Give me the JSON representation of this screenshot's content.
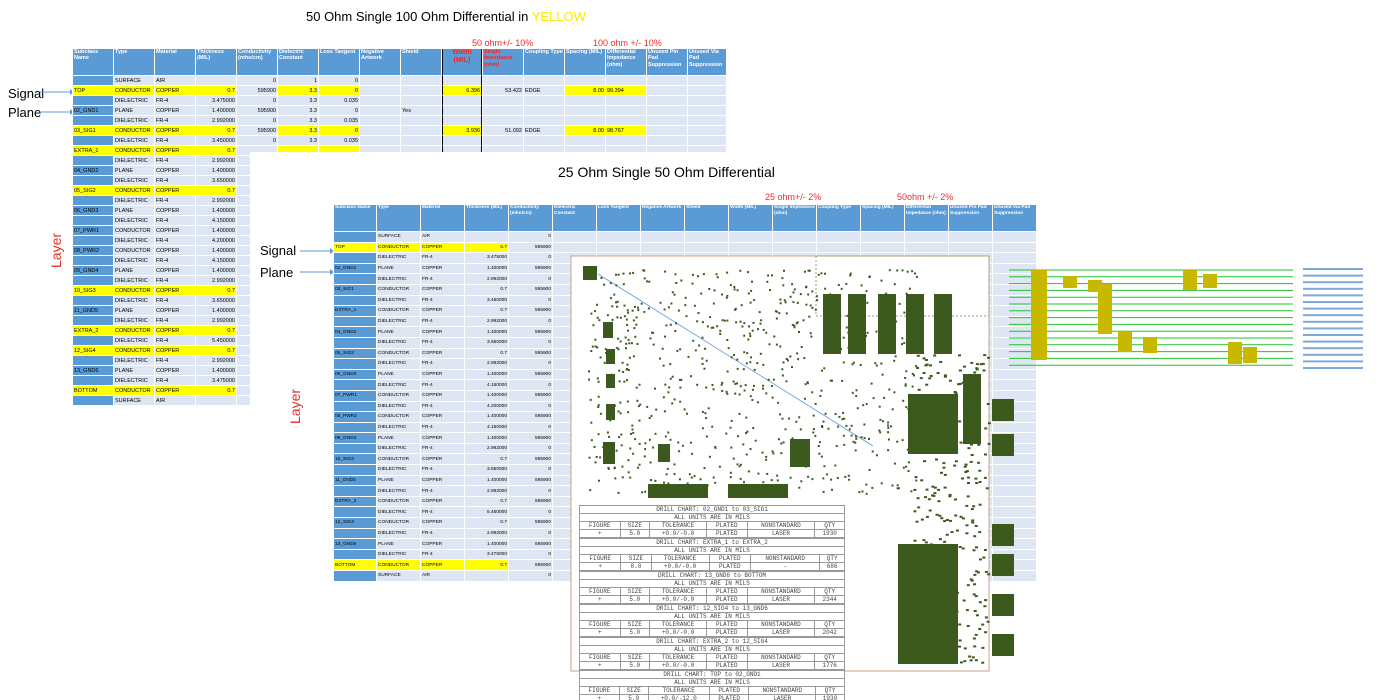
{
  "top_title": {
    "prefix": "50 Ohm Single 100 Ohm Differential in ",
    "highlight": "YELLOW"
  },
  "top_notes": {
    "single": "50 ohm+/- 10%",
    "diff": "100 ohm +/- 10%"
  },
  "second_title": "25 Ohm Single 50 Ohm Differential",
  "second_notes": {
    "single": "25 ohm+/- 2%",
    "diff": "50ohm +/- 2%"
  },
  "labels": {
    "signal": "Signal",
    "plane": "Plane",
    "layer": "Layer"
  },
  "table1": {
    "headers": [
      "Subclass Name",
      "Type",
      "Material",
      "Thickness (MIL)",
      "Conductivity (mho/cm)",
      "Dielectric Constant",
      "Loss Tangent",
      "Negative Artwork",
      "Shield",
      "Width (MIL)",
      "Single Impedance (ohm)",
      "Coupling Type",
      "Spacing (MIL)",
      "Differential Impedance (ohm)",
      "Unused Pin Pad Suppression",
      "Unused Via Pad Suppression"
    ],
    "rows": [
      {
        "n": "",
        "t": "SURFACE",
        "m": "AIR",
        "th": "",
        "c": "0",
        "d": "1",
        "l": "0",
        "sh": "",
        "w": "",
        "si": "",
        "ct": "",
        "sp": "",
        "di": ""
      },
      {
        "n": "TOP",
        "t": "CONDUCTOR",
        "m": "COPPER",
        "th": "0.7",
        "c": "595900",
        "d": "3.3",
        "l": "0",
        "sh": "",
        "w": "6.396",
        "si": "53.422",
        "ct": "EDGE",
        "sp": "8.00",
        "di": "99.394",
        "y": true
      },
      {
        "n": "",
        "t": "DIELECTRIC",
        "m": "FR-4",
        "th": "3.475000",
        "c": "0",
        "d": "3.3",
        "l": "0.035",
        "sh": "",
        "w": "",
        "si": "",
        "ct": "",
        "sp": "",
        "di": ""
      },
      {
        "n": "02_GND1",
        "t": "PLANE",
        "m": "COPPER",
        "th": "1.400000",
        "c": "595900",
        "d": "3.3",
        "l": "0",
        "sh": "Yes",
        "w": "",
        "si": "",
        "ct": "",
        "sp": "",
        "di": ""
      },
      {
        "n": "",
        "t": "DIELECTRIC",
        "m": "FR-4",
        "th": "2.992000",
        "c": "0",
        "d": "3.3",
        "l": "0.035",
        "sh": "",
        "w": "",
        "si": "",
        "ct": "",
        "sp": "",
        "di": ""
      },
      {
        "n": "03_SIG1",
        "t": "CONDUCTOR",
        "m": "COPPER",
        "th": "0.7",
        "c": "595900",
        "d": "3.3",
        "l": "0",
        "sh": "",
        "w": "3.936",
        "si": "51.092",
        "ct": "EDGE",
        "sp": "8.00",
        "di": "98.767",
        "y": true
      },
      {
        "n": "",
        "t": "DIELECTRIC",
        "m": "FR-4",
        "th": "3.450000",
        "c": "0",
        "d": "3.3",
        "l": "0.035",
        "sh": "",
        "w": "",
        "si": "",
        "ct": "",
        "sp": "",
        "di": ""
      },
      {
        "n": "EXTRA_1",
        "t": "CONDUCTOR",
        "m": "COPPER",
        "th": "0.7",
        "y": true
      },
      {
        "n": "",
        "t": "DIELECTRIC",
        "m": "FR-4",
        "th": "2.992000"
      },
      {
        "n": "04_GND2",
        "t": "PLANE",
        "m": "COPPER",
        "th": "1.400000"
      },
      {
        "n": "",
        "t": "DIELECTRIC",
        "m": "FR-4",
        "th": "3.650000"
      },
      {
        "n": "05_SIG2",
        "t": "CONDUCTOR",
        "m": "COPPER",
        "th": "0.7",
        "y": true
      },
      {
        "n": "",
        "t": "DIELECTRIC",
        "m": "FR-4",
        "th": "2.992000"
      },
      {
        "n": "06_GND3",
        "t": "PLANE",
        "m": "COPPER",
        "th": "1.400000"
      },
      {
        "n": "",
        "t": "DIELECTRIC",
        "m": "FR-4",
        "th": "4.150000"
      },
      {
        "n": "07_PWR1",
        "t": "CONDUCTOR",
        "m": "COPPER",
        "th": "1.400000"
      },
      {
        "n": "",
        "t": "DIELECTRIC",
        "m": "FR-4",
        "th": "4.200000"
      },
      {
        "n": "08_PWR2",
        "t": "CONDUCTOR",
        "m": "COPPER",
        "th": "1.400000"
      },
      {
        "n": "",
        "t": "DIELECTRIC",
        "m": "FR-4",
        "th": "4.150000"
      },
      {
        "n": "09_GND4",
        "t": "PLANE",
        "m": "COPPER",
        "th": "1.400000"
      },
      {
        "n": "",
        "t": "DIELECTRIC",
        "m": "FR-4",
        "th": "2.992000"
      },
      {
        "n": "10_SIG3",
        "t": "CONDUCTOR",
        "m": "COPPER",
        "th": "0.7",
        "y": true
      },
      {
        "n": "",
        "t": "DIELECTRIC",
        "m": "FR-4",
        "th": "3.650000"
      },
      {
        "n": "11_GND5",
        "t": "PLANE",
        "m": "COPPER",
        "th": "1.400000"
      },
      {
        "n": "",
        "t": "DIELECTRIC",
        "m": "FR-4",
        "th": "2.992000"
      },
      {
        "n": "EXTRA_2",
        "t": "CONDUCTOR",
        "m": "COPPER",
        "th": "0.7",
        "y": true
      },
      {
        "n": "",
        "t": "DIELECTRIC",
        "m": "FR-4",
        "th": "5.450000"
      },
      {
        "n": "12_SIG4",
        "t": "CONDUCTOR",
        "m": "COPPER",
        "th": "0.7",
        "y": true
      },
      {
        "n": "",
        "t": "DIELECTRIC",
        "m": "FR-4",
        "th": "2.992000"
      },
      {
        "n": "13_GND6",
        "t": "PLANE",
        "m": "COPPER",
        "th": "1.400000"
      },
      {
        "n": "",
        "t": "DIELECTRIC",
        "m": "FR-4",
        "th": "3.475000"
      },
      {
        "n": "BOTTOM",
        "t": "CONDUCTOR",
        "m": "COPPER",
        "th": "0.7",
        "y": true
      },
      {
        "n": "",
        "t": "SURFACE",
        "m": "AIR",
        "th": ""
      }
    ]
  },
  "table2": {
    "headers": [
      "Subclass Name",
      "Type",
      "Material",
      "Thickness (MIL)",
      "Conductivity (mho/cm)",
      "Dielectric Constant",
      "Loss Tangent",
      "Negative Artwork",
      "Shield",
      "Width (MIL)",
      "Single Impedance (ohm)",
      "Coupling Type",
      "Spacing (MIL)",
      "Differential Impedance (ohm)",
      "Unused Pin Pad Suppression",
      "Unused Via Pad Suppression"
    ],
    "rows": [
      {
        "n": "",
        "t": "SURFACE",
        "m": "AIR",
        "th": "",
        "c": "0"
      },
      {
        "n": "TOP",
        "t": "CONDUCTOR",
        "m": "COPPER",
        "th": "0.7",
        "c": "595900",
        "y": true
      },
      {
        "n": "",
        "t": "DIELECTRIC",
        "m": "FR-4",
        "th": "3.475000",
        "c": "0"
      },
      {
        "n": "02_GND1",
        "t": "PLANE",
        "m": "COPPER",
        "th": "1.400000",
        "c": "595900"
      },
      {
        "n": "",
        "t": "DIELECTRIC",
        "m": "FR-4",
        "th": "2.992000",
        "c": "0"
      },
      {
        "n": "03_SIG1",
        "t": "CONDUCTOR",
        "m": "COPPER",
        "th": "0.7",
        "c": "595900"
      },
      {
        "n": "",
        "t": "DIELECTRIC",
        "m": "FR-4",
        "th": "3.450000",
        "c": "0"
      },
      {
        "n": "EXTRA_1",
        "t": "CONDUCTOR",
        "m": "COPPER",
        "th": "0.7",
        "c": "595900"
      },
      {
        "n": "",
        "t": "DIELECTRIC",
        "m": "FR-4",
        "th": "2.992000",
        "c": "0"
      },
      {
        "n": "04_GND2",
        "t": "PLANE",
        "m": "COPPER",
        "th": "1.400000",
        "c": "595900"
      },
      {
        "n": "",
        "t": "DIELECTRIC",
        "m": "FR-4",
        "th": "3.650000",
        "c": "0"
      },
      {
        "n": "05_SIG2",
        "t": "CONDUCTOR",
        "m": "COPPER",
        "th": "0.7",
        "c": "595900"
      },
      {
        "n": "",
        "t": "DIELECTRIC",
        "m": "FR-4",
        "th": "2.992000",
        "c": "0"
      },
      {
        "n": "06_GND3",
        "t": "PLANE",
        "m": "COPPER",
        "th": "1.400000",
        "c": "595900"
      },
      {
        "n": "",
        "t": "DIELECTRIC",
        "m": "FR-4",
        "th": "4.150000",
        "c": "0"
      },
      {
        "n": "07_PWR1",
        "t": "CONDUCTOR",
        "m": "COPPER",
        "th": "1.400000",
        "c": "595900"
      },
      {
        "n": "",
        "t": "DIELECTRIC",
        "m": "FR-4",
        "th": "4.200000",
        "c": "0"
      },
      {
        "n": "08_PWR2",
        "t": "CONDUCTOR",
        "m": "COPPER",
        "th": "1.400000",
        "c": "595900"
      },
      {
        "n": "",
        "t": "DIELECTRIC",
        "m": "FR-4",
        "th": "4.150000",
        "c": "0"
      },
      {
        "n": "09_GND4",
        "t": "PLANE",
        "m": "COPPER",
        "th": "1.400000",
        "c": "595900"
      },
      {
        "n": "",
        "t": "DIELECTRIC",
        "m": "FR-4",
        "th": "2.992000",
        "c": "0"
      },
      {
        "n": "10_SIG3",
        "t": "CONDUCTOR",
        "m": "COPPER",
        "th": "0.7",
        "c": "595900"
      },
      {
        "n": "",
        "t": "DIELECTRIC",
        "m": "FR-4",
        "th": "3.650000",
        "c": "0"
      },
      {
        "n": "11_GND5",
        "t": "PLANE",
        "m": "COPPER",
        "th": "1.400000",
        "c": "595900"
      },
      {
        "n": "",
        "t": "DIELECTRIC",
        "m": "FR-4",
        "th": "2.992000",
        "c": "0"
      },
      {
        "n": "EXTRA_2",
        "t": "CONDUCTOR",
        "m": "COPPER",
        "th": "0.7",
        "c": "595900"
      },
      {
        "n": "",
        "t": "DIELECTRIC",
        "m": "FR-4",
        "th": "5.450000",
        "c": "0"
      },
      {
        "n": "12_SIG4",
        "t": "CONDUCTOR",
        "m": "COPPER",
        "th": "0.7",
        "c": "595900"
      },
      {
        "n": "",
        "t": "DIELECTRIC",
        "m": "FR-4",
        "th": "2.992000",
        "c": "0"
      },
      {
        "n": "13_GND6",
        "t": "PLANE",
        "m": "COPPER",
        "th": "1.400000",
        "c": "595900"
      },
      {
        "n": "",
        "t": "DIELECTRIC",
        "m": "FR-4",
        "th": "3.475000",
        "c": "0"
      },
      {
        "n": "BOTTOM",
        "t": "CONDUCTOR",
        "m": "COPPER",
        "th": "0.7",
        "c": "595900",
        "y": true
      },
      {
        "n": "",
        "t": "SURFACE",
        "m": "AIR",
        "th": "",
        "c": "0"
      }
    ]
  },
  "drill_charts": [
    {
      "title": "DRILL CHART: 02_GND1 to 03_SIG1",
      "units": "ALL UNITS ARE IN MILS",
      "head": [
        "FIGURE",
        "SIZE",
        "TOLERANCE",
        "PLATED",
        "NONSTANDARD",
        "QTY"
      ],
      "row": [
        "+",
        "5.0",
        "+0.0/-0.0",
        "PLATED",
        "LASER",
        "1930"
      ]
    },
    {
      "title": "DRILL CHART: EXTRA_1 to EXTRA_2",
      "units": "ALL UNITS ARE IN MILS",
      "head": [
        "FIGURE",
        "SIZE",
        "TOLERANCE",
        "PLATED",
        "NONSTANDARD",
        "QTY"
      ],
      "row": [
        "+",
        "8.0",
        "+0.0/-0.0",
        "PLATED",
        "-",
        "686"
      ]
    },
    {
      "title": "DRILL CHART: 13_GND6 to BOTTOM",
      "units": "ALL UNITS ARE IN MILS",
      "head": [
        "FIGURE",
        "SIZE",
        "TOLERANCE",
        "PLATED",
        "NONSTANDARD",
        "QTY"
      ],
      "row": [
        "+",
        "5.0",
        "+0.0/-0.0",
        "PLATED",
        "LASER",
        "2344"
      ]
    },
    {
      "title": "DRILL CHART: 12_SIG4 to 13_GND6",
      "units": "ALL UNITS ARE IN MILS",
      "head": [
        "FIGURE",
        "SIZE",
        "TOLERANCE",
        "PLATED",
        "NONSTANDARD",
        "QTY"
      ],
      "row": [
        "+",
        "5.0",
        "+0.0/-0.0",
        "PLATED",
        "LASER",
        "2042"
      ]
    },
    {
      "title": "DRILL CHART: EXTRA_2 to 12_SIG4",
      "units": "ALL UNITS ARE IN MILS",
      "head": [
        "FIGURE",
        "SIZE",
        "TOLERANCE",
        "PLATED",
        "NONSTANDARD",
        "QTY"
      ],
      "row": [
        "+",
        "5.0",
        "+0.0/-0.0",
        "PLATED",
        "LASER",
        "1776"
      ]
    },
    {
      "title": "DRILL CHART: TOP to 02_GND1",
      "units": "ALL UNITS ARE IN MILS",
      "head": [
        "FIGURE",
        "SIZE",
        "TOLERANCE",
        "PLATED",
        "NONSTANDARD",
        "QTY"
      ],
      "row": [
        "+",
        "5.0",
        "+0.0/-12.0",
        "PLATED",
        "LASER",
        "1930"
      ]
    }
  ],
  "colors": {
    "header_blue": "#5b9bd5",
    "row_blue": "#dde6f2",
    "highlight": "#ffff00",
    "note_red": "#e8302a",
    "copper_green": "#3d5a1e",
    "trace_green": "#22c22e"
  }
}
